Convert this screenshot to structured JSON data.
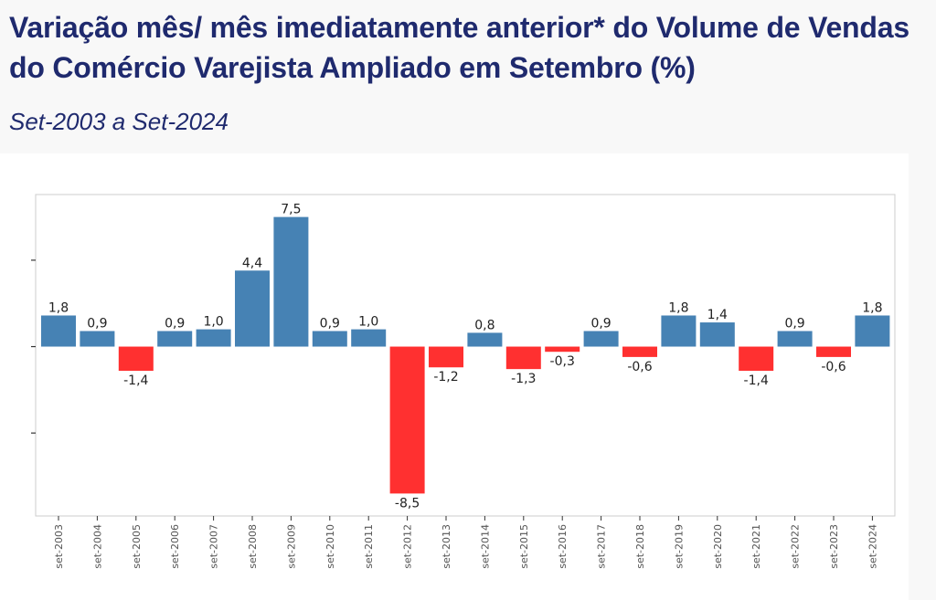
{
  "header": {
    "title": "Variação mês/ mês imediatamente anterior* do Volume de Vendas do Comércio Varejista Ampliado em Setembro (%)",
    "subtitle": "Set-2003 a Set-2024"
  },
  "chart_data": {
    "type": "bar",
    "categories": [
      "set-2003",
      "set-2004",
      "set-2005",
      "set-2006",
      "set-2007",
      "set-2008",
      "set-2009",
      "set-2010",
      "set-2011",
      "set-2012",
      "set-2013",
      "set-2014",
      "set-2015",
      "set-2016",
      "set-2017",
      "set-2018",
      "set-2019",
      "set-2020",
      "set-2021",
      "set-2022",
      "set-2023",
      "set-2024"
    ],
    "values": [
      1.8,
      0.9,
      -1.4,
      0.9,
      1.0,
      4.4,
      7.5,
      0.9,
      1.0,
      -8.5,
      -1.2,
      0.8,
      -1.3,
      -0.3,
      0.9,
      -0.6,
      1.8,
      1.4,
      -1.4,
      0.9,
      -0.6,
      1.8
    ],
    "value_labels": [
      "1,8",
      "0,9",
      "-1,4",
      "0,9",
      "1,0",
      "4,4",
      "7,5",
      "0,9",
      "1,0",
      "-8,5",
      "-1,2",
      "0,8",
      "-1,3",
      "-0,3",
      "0,9",
      "-0,6",
      "1,8",
      "1,4",
      "-1,4",
      "0,9",
      "-0,6",
      "1,8"
    ],
    "ylim": [
      -9.8,
      8.8
    ],
    "y_ticks": [
      -5,
      0,
      5
    ],
    "grid": false,
    "colors": {
      "positive": "#4682b4",
      "negative": "#ff3030"
    }
  }
}
